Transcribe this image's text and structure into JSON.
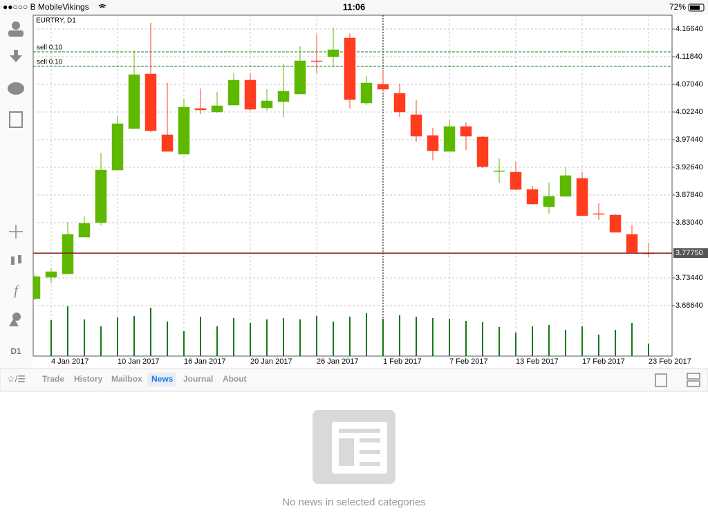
{
  "status_bar": {
    "carrier": "●●○○○ B MobileVikings",
    "time": "11:06",
    "battery": "72%"
  },
  "toolbar": {
    "timeframe": "D1"
  },
  "chart_data": {
    "type": "candlestick",
    "title": "EURTRY, D1",
    "categories": [
      null,
      "4 Jan 2017",
      null,
      null,
      null,
      "10 Jan 2017",
      null,
      null,
      null,
      "16 Jan 2017",
      null,
      null,
      null,
      "20 Jan 2017",
      null,
      null,
      null,
      "26 Jan 2017",
      null,
      null,
      null,
      "1 Feb 2017",
      null,
      null,
      null,
      "7 Feb 2017",
      null,
      null,
      null,
      "13 Feb 2017",
      null,
      null,
      null,
      "17 Feb 2017",
      null,
      null,
      null,
      "23 Feb 2017"
    ],
    "open": [
      3.6984,
      3.7356,
      3.7416,
      3.8052,
      3.8304,
      3.9216,
      3.9936,
      4.0884,
      3.9828,
      3.9492,
      4.0284,
      4.0224,
      4.0344,
      4.0776,
      4.0296,
      4.0404,
      4.0536,
      4.1112,
      4.1184,
      4.1508,
      4.038,
      4.0704,
      4.0548,
      4.0176,
      3.9816,
      3.954,
      3.9972,
      3.9792,
      3.9192,
      3.918,
      3.888,
      3.858,
      3.876,
      3.9072,
      3.846,
      3.8436,
      3.81,
      3.7776
    ],
    "high": [
      3.7392,
      3.7512,
      3.8316,
      3.8412,
      3.9516,
      4.0152,
      4.1292,
      4.1772,
      4.0728,
      4.0452,
      4.0632,
      4.0572,
      4.0896,
      4.0896,
      4.062,
      4.1064,
      4.1364,
      4.1568,
      4.1688,
      4.1592,
      4.0848,
      4.0956,
      4.0716,
      4.0428,
      3.9948,
      4.0092,
      4.0044,
      3.9804,
      3.942,
      3.936,
      3.894,
      3.9,
      3.9264,
      3.918,
      3.864,
      3.8448,
      3.8268,
      3.7956
    ],
    "low": [
      3.696,
      3.7248,
      3.7416,
      3.8052,
      3.8256,
      3.9216,
      3.9936,
      3.9876,
      3.954,
      3.9492,
      4.0188,
      4.0212,
      4.0344,
      4.0248,
      4.0248,
      4.0128,
      4.0536,
      4.0896,
      4.1004,
      4.0284,
      4.0344,
      4.0596,
      4.014,
      3.9708,
      3.9384,
      3.954,
      3.9564,
      3.9252,
      3.8988,
      3.8868,
      3.8616,
      3.846,
      3.876,
      3.8424,
      3.8352,
      3.8136,
      3.7788,
      3.7704
    ],
    "close": [
      3.7368,
      3.7452,
      3.81,
      3.8292,
      3.9216,
      4.002,
      4.0872,
      3.99,
      3.954,
      4.0308,
      4.026,
      4.0332,
      4.0776,
      4.0272,
      4.0416,
      4.0584,
      4.1112,
      4.11,
      4.1304,
      4.044,
      4.0728,
      4.062,
      4.0224,
      3.9804,
      3.9552,
      3.9972,
      3.9804,
      3.9276,
      3.9204,
      3.888,
      3.8628,
      3.876,
      3.912,
      3.8424,
      3.8448,
      3.8136,
      3.7788,
      3.7764
    ],
    "volume": [
      null,
      52,
      72,
      53,
      43,
      56,
      58,
      70,
      50,
      36,
      57,
      43,
      55,
      48,
      53,
      55,
      53,
      58,
      50,
      57,
      62,
      54,
      59,
      57,
      55,
      54,
      51,
      49,
      42,
      34,
      43,
      45,
      38,
      43,
      31,
      38,
      48,
      18
    ],
    "up_color": "#5fb800",
    "down_color": "#ff3c1e",
    "volume_color": "#137a13",
    "ylim": [
      3.5988,
      4.1904
    ],
    "yticks": [
      {
        "value": 4.1664,
        "label": "4.16640"
      },
      {
        "value": 4.1184,
        "label": "4.11840"
      },
      {
        "value": 4.0704,
        "label": "4.07040"
      },
      {
        "value": 4.0224,
        "label": "4.02240"
      },
      {
        "value": 3.9744,
        "label": "3.97440"
      },
      {
        "value": 3.9264,
        "label": "3.92640"
      },
      {
        "value": 3.8784,
        "label": "3.87840"
      },
      {
        "value": 3.8304,
        "label": "3.83040"
      },
      {
        "value": 3.7344,
        "label": "3.73440"
      },
      {
        "value": 3.6864,
        "label": "3.68640"
      }
    ],
    "orders": [
      {
        "label": "sell 0.10",
        "price": 4.1268
      },
      {
        "label": "sell 0.10",
        "price": 4.1016
      }
    ],
    "current_price": {
      "value": 3.7775,
      "label": "3.77750"
    },
    "grid": true
  },
  "tabs": [
    "Trade",
    "History",
    "Mailbox",
    "News",
    "Journal",
    "About"
  ],
  "active_tab": "News",
  "empty_message": "No news in selected categories"
}
